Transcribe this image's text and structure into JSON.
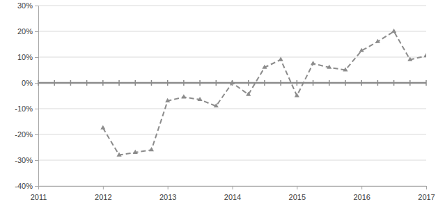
{
  "chart_data": {
    "type": "line",
    "x": [
      2012,
      2012.25,
      2012.5,
      2012.75,
      2013,
      2013.25,
      2013.5,
      2013.75,
      2014,
      2014.25,
      2014.5,
      2014.75,
      2015,
      2015.25,
      2015.5,
      2015.75,
      2016,
      2016.25,
      2016.5,
      2016.75,
      2017
    ],
    "values": [
      -17.5,
      -28,
      -27,
      -26,
      -7,
      -5.5,
      -6.5,
      -9,
      0,
      -4.5,
      6,
      9,
      -5,
      7.5,
      6,
      5,
      12.5,
      16,
      20,
      9,
      10.5
    ],
    "color": "#8c8c8c",
    "marker": "triangle",
    "line_style": "dashed",
    "xlim": [
      2011,
      2017
    ],
    "xticks": [
      2011,
      2012,
      2013,
      2014,
      2015,
      2016,
      2017
    ],
    "ylim": [
      -40,
      30
    ],
    "yticks": [
      {
        "value": -40,
        "label": "-40%"
      },
      {
        "value": -30,
        "label": "-30%"
      },
      {
        "value": -20,
        "label": "-20%"
      },
      {
        "value": -10,
        "label": "-10%"
      },
      {
        "value": 0,
        "label": "0%"
      },
      {
        "value": 10,
        "label": "10%"
      },
      {
        "value": 20,
        "label": "20%"
      },
      {
        "value": 30,
        "label": "30%"
      }
    ],
    "grid": true
  }
}
